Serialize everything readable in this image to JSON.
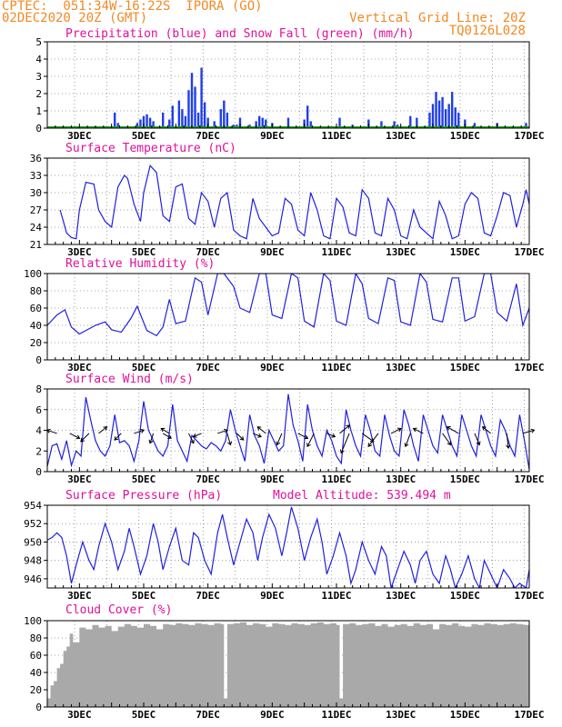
{
  "header": {
    "line1": "CPTEC:  051:34W-16:22S  IPORA (GO)",
    "line2": "02DEC2020 20Z (GMT)",
    "grid_note": "Vertical Grid Line: 20Z",
    "code": "TQ0126L028"
  },
  "x_labels": [
    "3DEC",
    "5DEC",
    "7DEC",
    "9DEC",
    "11DEC",
    "13DEC",
    "15DEC",
    "17DEC"
  ],
  "colors": {
    "line": "#2020e0",
    "bar": "#1f3fe8",
    "snow": "#1aa01a",
    "cloud": "#a9a9a9",
    "title": "#e0109a",
    "header": "#f08a24"
  },
  "chart_data": [
    {
      "type": "bar",
      "title": "Precipitation (blue) and Snow Fall (green) (mm/h)",
      "ylim": [
        0,
        5
      ],
      "yticks": [
        "0",
        "1",
        "2",
        "3",
        "4",
        "5"
      ],
      "series": [
        {
          "name": "Precipitation",
          "points": [
            [
              4.1,
              0.9
            ],
            [
              4.2,
              0.3
            ],
            [
              4.8,
              0.3
            ],
            [
              4.9,
              0.5
            ],
            [
              5.0,
              0.7
            ],
            [
              5.1,
              0.8
            ],
            [
              5.2,
              0.6
            ],
            [
              5.3,
              0.4
            ],
            [
              5.6,
              0.9
            ],
            [
              5.8,
              0.5
            ],
            [
              5.9,
              1.3
            ],
            [
              6.1,
              1.6
            ],
            [
              6.2,
              1.1
            ],
            [
              6.3,
              0.7
            ],
            [
              6.4,
              2.2
            ],
            [
              6.5,
              3.2
            ],
            [
              6.6,
              2.4
            ],
            [
              6.7,
              0.9
            ],
            [
              6.8,
              3.5
            ],
            [
              6.9,
              1.5
            ],
            [
              7.0,
              0.6
            ],
            [
              7.2,
              0.4
            ],
            [
              7.4,
              1.1
            ],
            [
              7.5,
              1.6
            ],
            [
              7.6,
              0.9
            ],
            [
              7.8,
              0.2
            ],
            [
              7.9,
              0.2
            ],
            [
              8.0,
              0.6
            ],
            [
              8.3,
              0.2
            ],
            [
              8.5,
              0.4
            ],
            [
              8.6,
              0.7
            ],
            [
              8.7,
              0.6
            ],
            [
              8.8,
              0.5
            ],
            [
              9.0,
              0.3
            ],
            [
              9.5,
              0.6
            ],
            [
              10.0,
              0.5
            ],
            [
              10.1,
              1.3
            ],
            [
              10.2,
              0.4
            ],
            [
              11.1,
              0.6
            ],
            [
              11.5,
              0.2
            ],
            [
              12.0,
              0.5
            ],
            [
              12.4,
              0.4
            ],
            [
              12.8,
              0.4
            ],
            [
              12.9,
              0.2
            ],
            [
              13.3,
              0.7
            ],
            [
              13.5,
              0.6
            ],
            [
              13.9,
              0.9
            ],
            [
              14.0,
              1.4
            ],
            [
              14.1,
              2.1
            ],
            [
              14.2,
              1.6
            ],
            [
              14.3,
              1.8
            ],
            [
              14.4,
              1.1
            ],
            [
              14.5,
              1.4
            ],
            [
              14.6,
              2.1
            ],
            [
              14.7,
              1.2
            ],
            [
              14.8,
              0.9
            ],
            [
              15.0,
              0.5
            ],
            [
              15.3,
              0.3
            ],
            [
              16.0,
              0.3
            ],
            [
              16.9,
              0.3
            ]
          ]
        },
        {
          "name": "Snow Fall",
          "points": []
        }
      ]
    },
    {
      "type": "line",
      "title": "Surface Temperature (nC)",
      "ylim": [
        21,
        36
      ],
      "yticks": [
        "21",
        "24",
        "27",
        "30",
        "33",
        "36"
      ],
      "x": [
        2.4,
        2.5,
        2.6,
        2.75,
        2.9,
        3.0,
        3.2,
        3.45,
        3.6,
        3.8,
        4.0,
        4.2,
        4.4,
        4.5,
        4.7,
        4.9,
        5.0,
        5.2,
        5.4,
        5.6,
        5.8,
        6.0,
        6.2,
        6.4,
        6.6,
        6.8,
        7.0,
        7.2,
        7.4,
        7.6,
        7.8,
        8.0,
        8.2,
        8.4,
        8.6,
        8.8,
        9.0,
        9.2,
        9.4,
        9.6,
        9.8,
        10.0,
        10.2,
        10.4,
        10.6,
        10.8,
        11.0,
        11.2,
        11.4,
        11.6,
        11.8,
        12.0,
        12.2,
        12.4,
        12.6,
        12.8,
        13.0,
        13.2,
        13.4,
        13.6,
        13.8,
        14.0,
        14.2,
        14.4,
        14.6,
        14.8,
        15.0,
        15.2,
        15.4,
        15.6,
        15.8,
        16.0,
        16.2,
        16.4,
        16.6,
        16.8,
        16.9,
        17.0
      ],
      "y": [
        27.0,
        25.0,
        23.0,
        22.2,
        22.0,
        27.0,
        31.8,
        31.5,
        27.0,
        25.0,
        24.0,
        31.0,
        33.0,
        32.5,
        28.0,
        25.0,
        30.0,
        34.7,
        33.5,
        26.0,
        25.0,
        31.0,
        31.5,
        25.5,
        24.5,
        30.0,
        28.5,
        24.0,
        29.0,
        30.0,
        23.5,
        22.5,
        22.0,
        29.0,
        25.5,
        24.0,
        22.5,
        23.0,
        29.0,
        28.0,
        23.5,
        22.5,
        30.0,
        27.0,
        22.5,
        22.0,
        29.0,
        27.5,
        23.0,
        22.5,
        30.5,
        29.0,
        23.0,
        22.5,
        29.0,
        27.0,
        22.5,
        22.0,
        27.0,
        24.0,
        23.0,
        22.0,
        28.5,
        26.0,
        22.0,
        22.5,
        28.0,
        30.0,
        29.0,
        23.0,
        22.5,
        26.0,
        30.0,
        29.5,
        24.0,
        28.0,
        30.5,
        28.0
      ]
    },
    {
      "type": "line",
      "title": "Relative Humidity (%)",
      "ylim": [
        0,
        100
      ],
      "yticks": [
        "0",
        "20",
        "40",
        "60",
        "80",
        "100"
      ],
      "x": [
        2.0,
        2.3,
        2.55,
        2.75,
        3.0,
        3.5,
        3.8,
        4.0,
        4.3,
        4.6,
        4.8,
        5.1,
        5.4,
        5.6,
        5.8,
        6.0,
        6.3,
        6.6,
        6.8,
        7.0,
        7.3,
        7.5,
        7.8,
        8.0,
        8.3,
        8.6,
        8.8,
        9.0,
        9.3,
        9.6,
        9.8,
        10.0,
        10.3,
        10.6,
        10.8,
        11.0,
        11.3,
        11.6,
        11.8,
        12.0,
        12.3,
        12.6,
        12.8,
        13.0,
        13.3,
        13.6,
        13.8,
        14.0,
        14.3,
        14.6,
        14.8,
        15.0,
        15.3,
        15.6,
        15.8,
        16.0,
        16.3,
        16.6,
        16.8,
        17.0
      ],
      "y": [
        40,
        52,
        58,
        38,
        30,
        40,
        44,
        35,
        32,
        48,
        62,
        34,
        28,
        38,
        70,
        42,
        45,
        95,
        90,
        52,
        100,
        100,
        85,
        60,
        55,
        100,
        100,
        52,
        48,
        100,
        95,
        45,
        38,
        100,
        92,
        45,
        40,
        100,
        88,
        48,
        42,
        95,
        92,
        44,
        40,
        100,
        90,
        47,
        44,
        95,
        95,
        45,
        50,
        100,
        100,
        55,
        45,
        88,
        40,
        60
      ]
    },
    {
      "type": "line",
      "title": "Surface Wind (m/s)",
      "ylim": [
        0,
        8
      ],
      "yticks": [
        "0",
        "2",
        "4",
        "6",
        "8"
      ],
      "x": [
        2.0,
        2.15,
        2.3,
        2.45,
        2.6,
        2.75,
        2.9,
        3.05,
        3.2,
        3.35,
        3.5,
        3.65,
        3.8,
        3.95,
        4.1,
        4.25,
        4.4,
        4.55,
        4.7,
        4.85,
        5.0,
        5.15,
        5.3,
        5.45,
        5.6,
        5.75,
        5.9,
        6.05,
        6.2,
        6.35,
        6.5,
        6.65,
        6.8,
        6.95,
        7.1,
        7.25,
        7.4,
        7.55,
        7.7,
        7.85,
        8.0,
        8.15,
        8.3,
        8.45,
        8.6,
        8.75,
        8.9,
        9.05,
        9.2,
        9.35,
        9.5,
        9.65,
        9.8,
        9.95,
        10.1,
        10.25,
        10.4,
        10.55,
        10.7,
        10.85,
        11.0,
        11.15,
        11.3,
        11.45,
        11.6,
        11.75,
        11.9,
        12.05,
        12.2,
        12.35,
        12.5,
        12.65,
        12.8,
        12.95,
        13.1,
        13.25,
        13.4,
        13.55,
        13.7,
        13.85,
        14.0,
        14.15,
        14.3,
        14.45,
        14.6,
        14.75,
        14.9,
        15.05,
        15.2,
        15.35,
        15.5,
        15.65,
        15.8,
        15.95,
        16.1,
        16.25,
        16.4,
        16.55,
        16.7,
        16.85,
        17.0
      ],
      "y": [
        0.5,
        2.5,
        2.7,
        1.2,
        3.0,
        0.6,
        2.0,
        1.5,
        7.2,
        5.0,
        3.0,
        2.0,
        1.5,
        2.5,
        5.5,
        2.8,
        3.0,
        2.5,
        1.0,
        3.0,
        6.8,
        4.0,
        3.0,
        2.0,
        1.5,
        2.5,
        6.5,
        3.0,
        2.0,
        1.0,
        3.5,
        3.0,
        2.5,
        2.2,
        2.8,
        2.5,
        2.0,
        3.0,
        6.0,
        4.0,
        2.5,
        1.0,
        5.5,
        3.5,
        2.5,
        0.8,
        4.0,
        3.0,
        2.0,
        2.5,
        7.5,
        4.5,
        3.0,
        1.0,
        6.5,
        4.0,
        2.5,
        1.5,
        4.0,
        3.0,
        1.5,
        0.8,
        6.0,
        4.0,
        2.5,
        1.5,
        5.5,
        4.0,
        2.0,
        1.5,
        5.5,
        3.5,
        2.0,
        1.5,
        6.0,
        4.5,
        2.5,
        1.0,
        5.5,
        4.0,
        2.5,
        1.8,
        5.5,
        4.0,
        2.5,
        1.5,
        5.5,
        4.0,
        2.5,
        1.5,
        5.5,
        4.0,
        2.5,
        1.5,
        5.0,
        4.0,
        2.5,
        1.5,
        5.5,
        3.0,
        0.2
      ],
      "vectors": [
        [
          2.3,
          -0.6,
          0.2
        ],
        [
          2.7,
          0.6,
          -0.3
        ],
        [
          3.3,
          -0.5,
          -0.5
        ],
        [
          3.6,
          0.5,
          0.4
        ],
        [
          4.3,
          -0.4,
          -0.4
        ],
        [
          4.7,
          0.6,
          0.2
        ],
        [
          5.3,
          -0.2,
          -0.6
        ],
        [
          5.6,
          0.5,
          -0.3
        ],
        [
          5.8,
          -0.5,
          0.3
        ],
        [
          6.4,
          0.3,
          -0.6
        ],
        [
          6.8,
          -0.5,
          -0.2
        ],
        [
          7.3,
          0.6,
          0.2
        ],
        [
          7.6,
          0.2,
          -0.7
        ],
        [
          7.9,
          0.4,
          -0.4
        ],
        [
          8.4,
          0.5,
          -0.2
        ],
        [
          8.8,
          -0.5,
          0.4
        ],
        [
          9.3,
          -0.3,
          -0.7
        ],
        [
          9.8,
          0.6,
          -0.3
        ],
        [
          10.3,
          -0.4,
          -0.8
        ],
        [
          10.7,
          0.5,
          -0.2
        ],
        [
          11.1,
          0.6,
          0.5
        ],
        [
          11.4,
          -0.5,
          -1.2
        ],
        [
          11.8,
          0.7,
          -0.5
        ],
        [
          12.3,
          -0.6,
          -0.8
        ],
        [
          12.7,
          0.6,
          0.3
        ],
        [
          13.3,
          -0.3,
          -0.8
        ],
        [
          13.7,
          -0.6,
          0.3
        ],
        [
          14.3,
          0.5,
          -0.7
        ],
        [
          14.8,
          -0.7,
          0.4
        ],
        [
          15.3,
          0.3,
          -0.7
        ],
        [
          15.8,
          -0.5,
          0.4
        ],
        [
          16.3,
          0.1,
          -0.9
        ],
        [
          16.8,
          0.7,
          0.2
        ]
      ]
    },
    {
      "type": "line",
      "title": "Surface Pressure (hPa)",
      "annotation": "Model Altitude: 539.494 m",
      "ylim": [
        945,
        954
      ],
      "yticks": [
        "946",
        "948",
        "950",
        "952",
        "954"
      ],
      "x": [
        2.0,
        2.15,
        2.3,
        2.45,
        2.6,
        2.75,
        2.9,
        3.1,
        3.3,
        3.45,
        3.6,
        3.8,
        4.0,
        4.2,
        4.4,
        4.55,
        4.7,
        4.9,
        5.1,
        5.3,
        5.45,
        5.6,
        5.8,
        6.0,
        6.2,
        6.4,
        6.55,
        6.7,
        6.9,
        7.1,
        7.3,
        7.45,
        7.6,
        7.8,
        8.0,
        8.2,
        8.4,
        8.55,
        8.7,
        8.9,
        9.1,
        9.3,
        9.45,
        9.6,
        9.8,
        10.0,
        10.2,
        10.4,
        10.55,
        10.7,
        10.9,
        11.1,
        11.3,
        11.45,
        11.6,
        11.8,
        12.0,
        12.2,
        12.4,
        12.55,
        12.7,
        12.9,
        13.1,
        13.3,
        13.45,
        13.6,
        13.8,
        14.0,
        14.2,
        14.4,
        14.55,
        14.7,
        14.9,
        15.1,
        15.3,
        15.45,
        15.6,
        15.8,
        16.0,
        16.2,
        16.4,
        16.55,
        16.7,
        16.9,
        17.0
      ],
      "y": [
        950.2,
        950.5,
        951.0,
        950.5,
        948.5,
        945.5,
        947.5,
        950.0,
        948.0,
        947.0,
        949.5,
        952.0,
        950.0,
        947.0,
        949.0,
        951.5,
        949.5,
        946.5,
        948.5,
        952.0,
        950.0,
        947.0,
        949.5,
        951.5,
        948.0,
        947.5,
        951.0,
        950.5,
        948.0,
        946.5,
        951.0,
        953.0,
        950.5,
        947.5,
        950.0,
        952.5,
        951.0,
        948.0,
        950.5,
        953.0,
        951.5,
        948.5,
        951.0,
        953.8,
        951.5,
        948.0,
        950.5,
        952.5,
        950.0,
        946.5,
        948.5,
        951.0,
        948.5,
        945.5,
        947.0,
        950.0,
        948.0,
        946.5,
        949.5,
        948.5,
        945.0,
        947.0,
        949.0,
        947.5,
        945.5,
        948.0,
        949.0,
        946.5,
        945.5,
        948.5,
        947.0,
        945.0,
        946.5,
        948.5,
        946.0,
        945.0,
        948.0,
        946.5,
        945.0,
        947.0,
        946.0,
        945.0,
        945.5,
        945.0,
        947.0
      ]
    },
    {
      "type": "area",
      "title": "Cloud Cover (%)",
      "ylim": [
        0,
        100
      ],
      "yticks": [
        "0",
        "20",
        "40",
        "60",
        "80",
        "100"
      ],
      "x": [
        2.0,
        2.1,
        2.2,
        2.3,
        2.4,
        2.5,
        2.6,
        2.7,
        2.8,
        3.0,
        3.2,
        3.4,
        3.6,
        3.8,
        4.0,
        4.2,
        4.4,
        4.6,
        4.8,
        5.0,
        5.2,
        5.4,
        5.6,
        5.8,
        6.0,
        6.2,
        6.4,
        6.6,
        6.8,
        7.0,
        7.2,
        7.4,
        7.5,
        7.6,
        7.8,
        8.0,
        8.2,
        8.4,
        8.6,
        8.8,
        9.0,
        9.2,
        9.4,
        9.6,
        9.8,
        10.0,
        10.2,
        10.4,
        10.6,
        10.8,
        11.0,
        11.1,
        11.2,
        11.4,
        11.6,
        11.8,
        12.0,
        12.2,
        12.4,
        12.6,
        12.8,
        13.0,
        13.2,
        13.4,
        13.6,
        13.8,
        14.0,
        14.2,
        14.4,
        14.6,
        14.8,
        15.0,
        15.2,
        15.4,
        15.6,
        15.8,
        16.0,
        16.2,
        16.4,
        16.6,
        16.8,
        17.0
      ],
      "y": [
        10,
        25,
        30,
        45,
        50,
        65,
        70,
        85,
        75,
        92,
        90,
        95,
        92,
        94,
        88,
        93,
        96,
        94,
        92,
        96,
        94,
        90,
        96,
        95,
        97,
        96,
        95,
        97,
        96,
        95,
        97,
        96,
        10,
        96,
        97,
        98,
        95,
        97,
        96,
        93,
        97,
        96,
        95,
        97,
        96,
        95,
        97,
        98,
        96,
        97,
        95,
        10,
        96,
        97,
        95,
        96,
        97,
        94,
        96,
        93,
        95,
        96,
        94,
        97,
        95,
        96,
        90,
        96,
        95,
        97,
        94,
        93,
        96,
        95,
        97,
        96,
        95,
        96,
        97,
        96,
        95,
        97
      ]
    }
  ]
}
